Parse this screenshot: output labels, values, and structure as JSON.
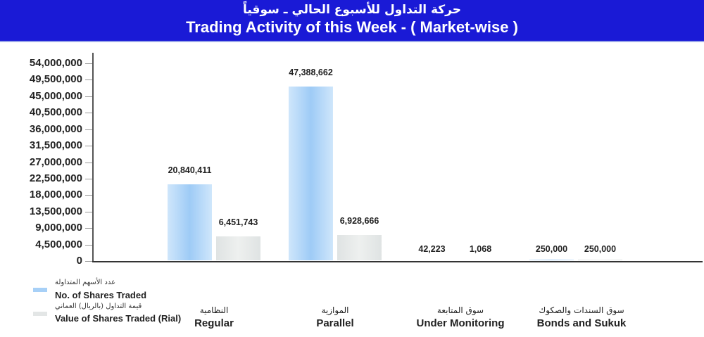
{
  "header": {
    "title_ar": "حركة التداول للأسبوع الحالي ـ سوقياً",
    "title_en": "Trading Activity of this Week - ( Market-wise )",
    "background_color": "#1a1ad6"
  },
  "legend": {
    "items": [
      {
        "label_ar": "عدد الأسهم المتداولة",
        "label_en": "No. of Shares Traded",
        "color": "#a7d0f7"
      },
      {
        "label_ar": "قيمة التداول (بالريال) العماني",
        "label_en": "Value of Shares Traded (Rial)",
        "color": "#e3e6e6"
      }
    ]
  },
  "y_axis": {
    "ticks": [
      "54,000,000",
      "49,500,000",
      "45,000,000",
      "40,500,000",
      "36,000,000",
      "31,500,000",
      "27,000,000",
      "22,500,000",
      "18,000,000",
      "13,500,000",
      "9,000,000",
      "4,500,000",
      "0"
    ]
  },
  "categories": [
    {
      "label_ar": "النظامية",
      "label_en": "Regular",
      "shares_label": "20,840,411",
      "value_label": "6,451,743"
    },
    {
      "label_ar": "الموازية",
      "label_en": "Parallel",
      "shares_label": "47,388,662",
      "value_label": "6,928,666"
    },
    {
      "label_ar": "سوق المتابعة",
      "label_en": "Under Monitoring",
      "shares_label": "42,223",
      "value_label": "1,068"
    },
    {
      "label_ar": "سوق السندات والصكوك",
      "label_en": "Bonds and Sukuk",
      "shares_label": "250,000",
      "value_label": "250,000"
    }
  ],
  "chart_data": {
    "type": "bar",
    "title": "Trading Activity of this Week - ( Market-wise )",
    "subtitle": "حركة التداول للأسبوع الحالي ـ سوقياً",
    "categories": [
      "Regular",
      "Parallel",
      "Under Monitoring",
      "Bonds and Sukuk"
    ],
    "categories_ar": [
      "النظامية",
      "الموازية",
      "سوق المتابعة",
      "سوق السندات والصكوك"
    ],
    "series": [
      {
        "name": "No. of Shares Traded",
        "name_ar": "عدد الأسهم المتداولة",
        "values": [
          20840411,
          47388662,
          42223,
          250000
        ],
        "color": "#a7d0f7"
      },
      {
        "name": "Value of Shares Traded (Rial)",
        "name_ar": "قيمة التداول (بالريال) العماني",
        "values": [
          6451743,
          6928666,
          1068,
          250000
        ],
        "color": "#e3e6e6"
      }
    ],
    "xlabel": "",
    "ylabel": "",
    "ylim": [
      0,
      54000000
    ],
    "yticks": [
      0,
      4500000,
      9000000,
      13500000,
      18000000,
      22500000,
      27000000,
      31500000,
      36000000,
      40500000,
      45000000,
      49500000,
      54000000
    ],
    "grid": false,
    "legend_position": "bottom-left",
    "data_labels": true
  }
}
